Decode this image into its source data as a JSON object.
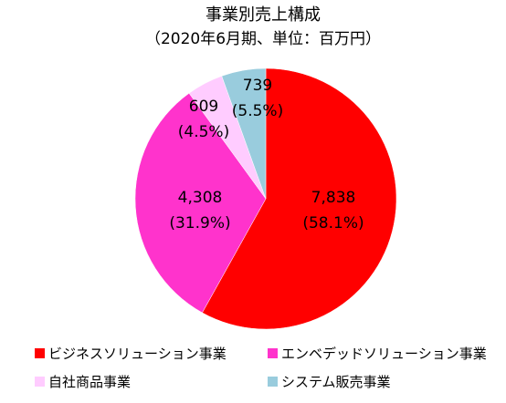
{
  "chart_data": {
    "type": "pie",
    "title": "事業別売上構成",
    "subtitle": "（2020年6月期、単位：百万円）",
    "slices": [
      {
        "label": "ビジネスソリューション事業",
        "value": 7838,
        "value_text": "7,838",
        "percent_text": "(58.1%)",
        "color": "#ff0000"
      },
      {
        "label": "エンベデッドソリューション事業",
        "value": 4308,
        "value_text": "4,308",
        "percent_text": "(31.9%)",
        "color": "#ff33cc"
      },
      {
        "label": "自社商品事業",
        "value": 609,
        "value_text": "609",
        "percent_text": "(4.5%)",
        "color": "#ffccff"
      },
      {
        "label": "システム販売事業",
        "value": 739,
        "value_text": "739",
        "percent_text": "(5.5%)",
        "color": "#99ccdd"
      }
    ],
    "start_angle_deg": 0,
    "direction": "clockwise",
    "legend_position": "bottom",
    "legend_marker": "■"
  }
}
